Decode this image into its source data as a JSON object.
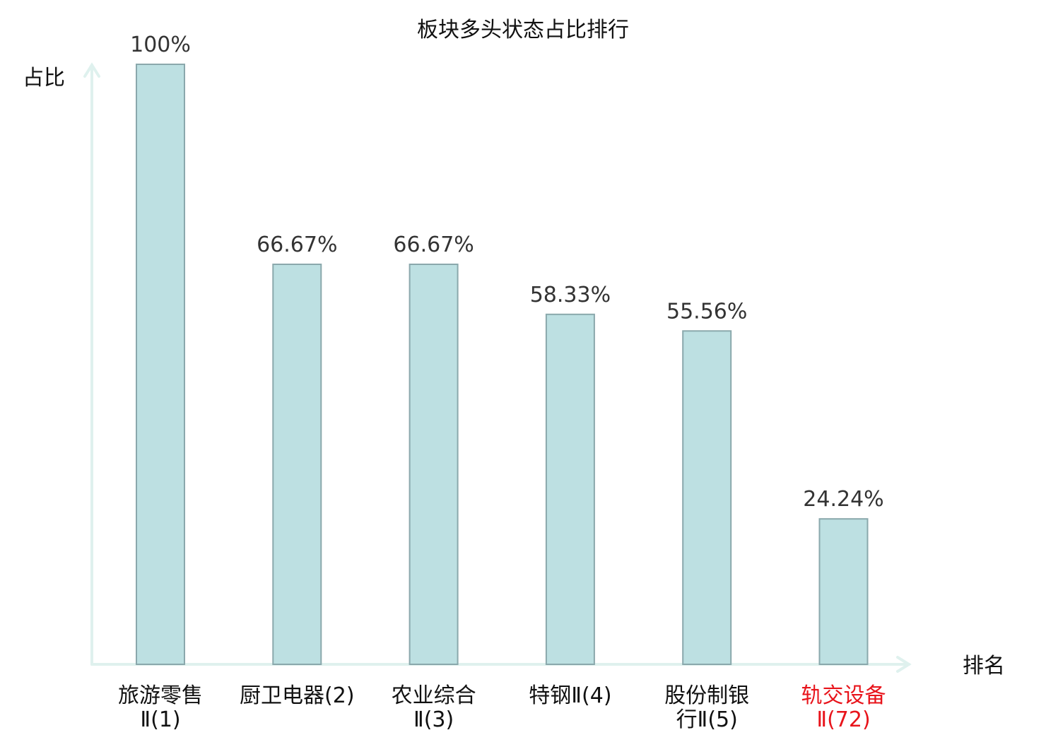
{
  "chart_data": {
    "type": "bar",
    "title": "板块多头状态占比排行",
    "ylabel": "占比",
    "xlabel": "排名",
    "ylim": [
      0,
      100
    ],
    "grid": false,
    "categories": [
      [
        "旅游零售",
        "Ⅱ(1)"
      ],
      [
        "厨卫电器(2)"
      ],
      [
        "农业综合",
        "Ⅱ(3)"
      ],
      [
        "特钢Ⅱ(4)"
      ],
      [
        "股份制银",
        "行Ⅱ(5)"
      ],
      [
        "轨交设备",
        "Ⅱ(72)"
      ]
    ],
    "values": [
      100,
      66.67,
      66.67,
      58.33,
      55.56,
      24.24
    ],
    "value_labels": [
      "100%",
      "66.67%",
      "66.67%",
      "58.33%",
      "55.56%",
      "24.24%"
    ],
    "highlight_index": 5,
    "colors": {
      "bar_fill": "#bde0e2",
      "bar_stroke": "#8aa8ac",
      "axis": "#dff1ee",
      "label": "#333333",
      "highlight": "#e8141b"
    }
  }
}
